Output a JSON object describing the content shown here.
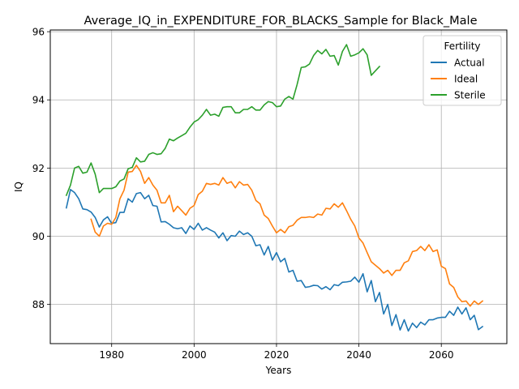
{
  "chart_data": {
    "type": "line",
    "title": "Average_IQ_in_EXPENDITURE_FOR_BLACKS_Sample for Black_Male",
    "xlabel": "Years",
    "ylabel": "IQ",
    "xlim": [
      1965.1,
      2075.9
    ],
    "ylim": [
      86.85,
      96.05
    ],
    "xticks": [
      1980,
      2000,
      2020,
      2040,
      2060
    ],
    "xtick_labels": [
      "1980",
      "2000",
      "2020",
      "2040",
      "2060"
    ],
    "yticks": [
      88,
      90,
      92,
      94,
      96
    ],
    "ytick_labels": [
      "88",
      "90",
      "92",
      "94",
      "96"
    ],
    "grid": true,
    "legend": {
      "title": "Fertility",
      "position": "top-right"
    },
    "series": [
      {
        "name": "Actual",
        "color": "#1f77b4",
        "x": [
          1969,
          1970,
          1971,
          1972,
          1973,
          1974,
          1975,
          1976,
          1977,
          1978,
          1979,
          1980,
          1981,
          1982,
          1983,
          1984,
          1985,
          1986,
          1987,
          1988,
          1989,
          1990,
          1991,
          1992,
          1993,
          1994,
          1995,
          1996,
          1997,
          1998,
          1999,
          2000,
          2001,
          2002,
          2003,
          2004,
          2005,
          2006,
          2007,
          2008,
          2009,
          2010,
          2011,
          2012,
          2013,
          2014,
          2015,
          2016,
          2017,
          2018,
          2019,
          2020,
          2021,
          2022,
          2023,
          2024,
          2025,
          2026,
          2027,
          2028,
          2029,
          2030,
          2031,
          2032,
          2033,
          2034,
          2035,
          2036,
          2037,
          2038,
          2039,
          2040,
          2041,
          2042,
          2043,
          2044,
          2045,
          2046,
          2047,
          2048,
          2049,
          2050,
          2051,
          2052,
          2053,
          2054,
          2055,
          2056,
          2057,
          2058,
          2059,
          2060,
          2061,
          2062,
          2063,
          2064,
          2065,
          2066,
          2067,
          2068,
          2069,
          2070
        ],
        "y": [
          90.83,
          91.37,
          91.28,
          91.1,
          90.8,
          90.78,
          90.71,
          90.55,
          90.27,
          90.48,
          90.57,
          90.38,
          90.4,
          90.7,
          90.7,
          91.1,
          91.0,
          91.25,
          91.28,
          91.1,
          91.2,
          90.9,
          90.88,
          90.42,
          90.43,
          90.35,
          90.25,
          90.22,
          90.25,
          90.08,
          90.3,
          90.2,
          90.38,
          90.18,
          90.25,
          90.18,
          90.12,
          89.95,
          90.1,
          89.87,
          90.02,
          90.0,
          90.15,
          90.05,
          90.1,
          90.0,
          89.72,
          89.75,
          89.45,
          89.7,
          89.3,
          89.52,
          89.25,
          89.35,
          88.95,
          89.0,
          88.68,
          88.7,
          88.5,
          88.52,
          88.56,
          88.55,
          88.45,
          88.52,
          88.43,
          88.58,
          88.55,
          88.65,
          88.66,
          88.68,
          88.8,
          88.65,
          88.9,
          88.37,
          88.7,
          88.08,
          88.35,
          87.72,
          88.0,
          87.38,
          87.7,
          87.25,
          87.55,
          87.22,
          87.45,
          87.32,
          87.48,
          87.4,
          87.55,
          87.55,
          87.6,
          87.62,
          87.62,
          87.8,
          87.68,
          87.92,
          87.72,
          87.9,
          87.55,
          87.68,
          87.26,
          87.35
        ]
      },
      {
        "name": "Ideal",
        "color": "#ff7f0e",
        "x": [
          1975,
          1976,
          1977,
          1978,
          1979,
          1980,
          1981,
          1982,
          1983,
          1984,
          1985,
          1986,
          1987,
          1988,
          1989,
          1990,
          1991,
          1992,
          1993,
          1994,
          1995,
          1996,
          1997,
          1998,
          1999,
          2000,
          2001,
          2002,
          2003,
          2004,
          2005,
          2006,
          2007,
          2008,
          2009,
          2010,
          2011,
          2012,
          2013,
          2014,
          2015,
          2016,
          2017,
          2018,
          2019,
          2020,
          2021,
          2022,
          2023,
          2024,
          2025,
          2026,
          2027,
          2028,
          2029,
          2030,
          2031,
          2032,
          2033,
          2034,
          2035,
          2036,
          2037,
          2038,
          2039,
          2040,
          2041,
          2042,
          2043,
          2044,
          2045,
          2046,
          2047,
          2048,
          2049,
          2050,
          2051,
          2052,
          2053,
          2054,
          2055,
          2056,
          2057,
          2058,
          2059,
          2060,
          2061,
          2062,
          2063,
          2064,
          2065,
          2066,
          2067,
          2068,
          2069,
          2070
        ],
        "y": [
          90.5,
          90.12,
          90.0,
          90.3,
          90.38,
          90.35,
          90.55,
          91.1,
          91.35,
          91.88,
          91.9,
          92.08,
          91.9,
          91.55,
          91.72,
          91.5,
          91.35,
          90.98,
          90.98,
          91.2,
          90.72,
          90.88,
          90.75,
          90.62,
          90.82,
          90.9,
          91.22,
          91.32,
          91.55,
          91.52,
          91.55,
          91.5,
          91.72,
          91.55,
          91.6,
          91.42,
          91.6,
          91.5,
          91.52,
          91.35,
          91.05,
          90.95,
          90.62,
          90.52,
          90.3,
          90.1,
          90.2,
          90.1,
          90.28,
          90.32,
          90.47,
          90.55,
          90.55,
          90.57,
          90.55,
          90.65,
          90.62,
          90.82,
          90.8,
          90.95,
          90.85,
          90.98,
          90.75,
          90.5,
          90.3,
          89.95,
          89.8,
          89.52,
          89.25,
          89.15,
          89.05,
          88.92,
          89.0,
          88.85,
          89.0,
          89.0,
          89.22,
          89.28,
          89.55,
          89.58,
          89.7,
          89.58,
          89.75,
          89.55,
          89.6,
          89.12,
          89.05,
          88.6,
          88.5,
          88.22,
          88.08,
          88.1,
          87.95,
          88.1,
          88.0,
          88.1
        ]
      },
      {
        "name": "Sterile",
        "color": "#2ca02c",
        "x": [
          1969,
          1970,
          1971,
          1972,
          1973,
          1974,
          1975,
          1976,
          1977,
          1978,
          1979,
          1980,
          1981,
          1982,
          1983,
          1984,
          1985,
          1986,
          1987,
          1988,
          1989,
          1990,
          1991,
          1992,
          1993,
          1994,
          1995,
          1996,
          1997,
          1998,
          1999,
          2000,
          2001,
          2002,
          2003,
          2004,
          2005,
          2006,
          2007,
          2008,
          2009,
          2010,
          2011,
          2012,
          2013,
          2014,
          2015,
          2016,
          2017,
          2018,
          2019,
          2020,
          2021,
          2022,
          2023,
          2024,
          2025,
          2026,
          2027,
          2028,
          2029,
          2030,
          2031,
          2032,
          2033,
          2034,
          2035,
          2036,
          2037,
          2038,
          2039,
          2040,
          2041,
          2042,
          2043,
          2044,
          2045
        ],
        "y": [
          91.2,
          91.5,
          92.0,
          92.05,
          91.85,
          91.88,
          92.15,
          91.82,
          91.28,
          91.4,
          91.4,
          91.4,
          91.45,
          91.62,
          91.68,
          91.98,
          92.02,
          92.3,
          92.18,
          92.2,
          92.4,
          92.45,
          92.4,
          92.42,
          92.58,
          92.85,
          92.8,
          92.88,
          92.95,
          93.02,
          93.2,
          93.35,
          93.42,
          93.55,
          93.72,
          93.55,
          93.58,
          93.52,
          93.78,
          93.8,
          93.8,
          93.62,
          93.62,
          93.72,
          93.72,
          93.8,
          93.7,
          93.7,
          93.85,
          93.95,
          93.92,
          93.8,
          93.82,
          94.02,
          94.1,
          94.02,
          94.45,
          94.95,
          94.97,
          95.05,
          95.3,
          95.45,
          95.35,
          95.48,
          95.28,
          95.3,
          95.02,
          95.42,
          95.62,
          95.28,
          95.32,
          95.38,
          95.5,
          95.32,
          94.72,
          94.85,
          94.98
        ]
      }
    ]
  }
}
